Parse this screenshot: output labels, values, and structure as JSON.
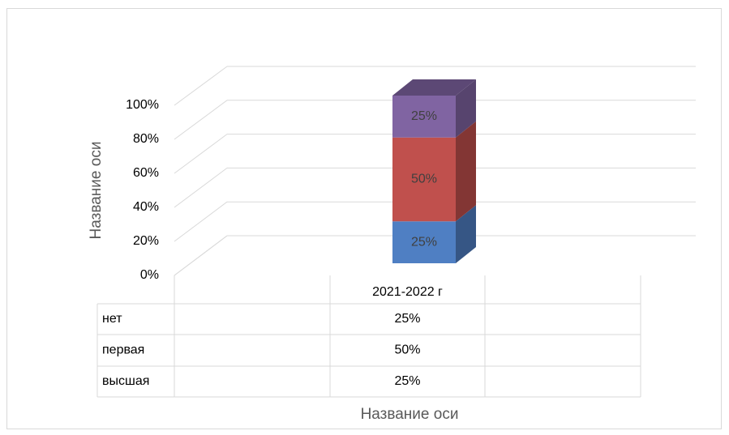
{
  "chart_data": {
    "type": "bar3d_stacked",
    "categories": [
      "2021-2022 г"
    ],
    "series": [
      {
        "name": "нет",
        "color": "#4f7fc3",
        "values": [
          25
        ],
        "value_labels": [
          "25%"
        ]
      },
      {
        "name": "первая",
        "color": "#c0504d",
        "values": [
          50
        ],
        "value_labels": [
          "50%"
        ]
      },
      {
        "name": "высшая",
        "color": "#8064a2",
        "values": [
          25
        ],
        "value_labels": [
          "25%"
        ]
      }
    ],
    "ylim": [
      0,
      100
    ],
    "yticks": [
      {
        "value": 0,
        "label": "0%"
      },
      {
        "value": 20,
        "label": "20%"
      },
      {
        "value": 40,
        "label": "40%"
      },
      {
        "value": 60,
        "label": "60%"
      },
      {
        "value": 80,
        "label": "80%"
      },
      {
        "value": 100,
        "label": "100%"
      }
    ],
    "y_axis_label": "Название оси",
    "x_axis_label": "Название оси",
    "grid": true,
    "data_table": true
  }
}
